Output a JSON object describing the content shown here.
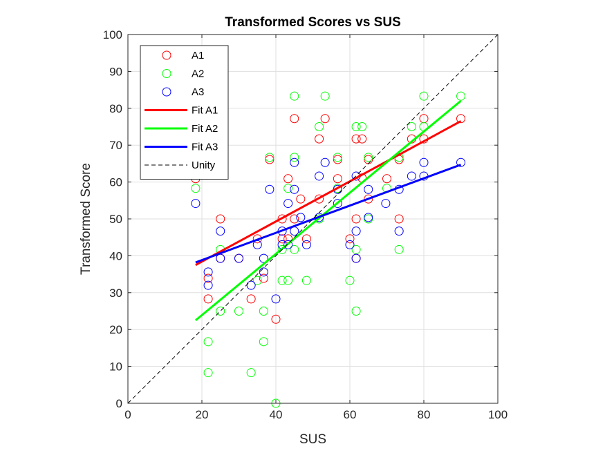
{
  "chart_data": {
    "type": "scatter",
    "title": "Transformed Scores vs SUS",
    "xlabel": "SUS",
    "ylabel": "Transformed Score",
    "xlim": [
      0,
      100
    ],
    "ylim": [
      0,
      100
    ],
    "xticks": [
      "0",
      "20",
      "40",
      "60",
      "80",
      "100"
    ],
    "yticks": [
      "0",
      "10",
      "20",
      "30",
      "40",
      "50",
      "60",
      "70",
      "80",
      "90",
      "100"
    ],
    "grid": true,
    "legend_position": "top-left",
    "series": [
      {
        "name": "A1",
        "kind": "scatter",
        "marker": "circle",
        "color": "#ff0000",
        "points": [
          [
            18.3,
            60.9
          ],
          [
            21.7,
            33.9
          ],
          [
            21.7,
            28.3
          ],
          [
            25,
            50
          ],
          [
            25,
            39.3
          ],
          [
            30,
            39.3
          ],
          [
            33.3,
            28.3
          ],
          [
            35,
            44.6
          ],
          [
            36.7,
            33.9
          ],
          [
            38.3,
            66.1
          ],
          [
            40,
            22.8
          ],
          [
            41.7,
            50
          ],
          [
            41.7,
            44.6
          ],
          [
            43.3,
            44.6
          ],
          [
            43.3,
            60.9
          ],
          [
            45,
            77.2
          ],
          [
            45,
            50
          ],
          [
            46.7,
            55.4
          ],
          [
            48.3,
            44.6
          ],
          [
            51.7,
            55.4
          ],
          [
            51.7,
            71.7
          ],
          [
            53.3,
            77.2
          ],
          [
            56.7,
            66.1
          ],
          [
            56.7,
            60.9
          ],
          [
            60,
            44.6
          ],
          [
            61.7,
            71.7
          ],
          [
            61.7,
            50
          ],
          [
            61.7,
            39.3
          ],
          [
            63.3,
            71.7
          ],
          [
            63.3,
            61.1
          ],
          [
            65,
            66.1
          ],
          [
            65,
            55.4
          ],
          [
            70,
            60.9
          ],
          [
            73.3,
            66.1
          ],
          [
            73.3,
            50
          ],
          [
            76.7,
            71.7
          ],
          [
            80,
            71.7
          ],
          [
            80,
            77.2
          ],
          [
            90,
            77.2
          ]
        ]
      },
      {
        "name": "A2",
        "kind": "scatter",
        "marker": "circle",
        "color": "#00ff00",
        "points": [
          [
            18.3,
            58.3
          ],
          [
            21.7,
            16.7
          ],
          [
            21.7,
            8.3
          ],
          [
            25,
            41.7
          ],
          [
            25,
            25
          ],
          [
            30,
            25
          ],
          [
            33.3,
            8.3
          ],
          [
            35,
            33.3
          ],
          [
            36.7,
            16.7
          ],
          [
            36.7,
            25
          ],
          [
            38.3,
            66.7
          ],
          [
            40,
            0
          ],
          [
            41.7,
            33.3
          ],
          [
            41.7,
            41.7
          ],
          [
            43.3,
            33.3
          ],
          [
            43.3,
            58.3
          ],
          [
            45,
            83.3
          ],
          [
            45,
            66.7
          ],
          [
            45,
            41.7
          ],
          [
            48.3,
            33.3
          ],
          [
            51.7,
            75
          ],
          [
            51.7,
            50
          ],
          [
            53.3,
            83.3
          ],
          [
            56.7,
            66.7
          ],
          [
            56.7,
            58.3
          ],
          [
            60,
            33.3
          ],
          [
            61.7,
            75
          ],
          [
            61.7,
            41.7
          ],
          [
            61.7,
            25
          ],
          [
            63.3,
            75
          ],
          [
            65,
            66.7
          ],
          [
            65,
            50
          ],
          [
            70,
            58.3
          ],
          [
            73.3,
            66.7
          ],
          [
            73.3,
            41.7
          ],
          [
            76.7,
            75
          ],
          [
            80,
            75
          ],
          [
            80,
            83.3
          ],
          [
            90,
            83.3
          ]
        ]
      },
      {
        "name": "A3",
        "kind": "scatter",
        "marker": "circle",
        "color": "#0000ff",
        "points": [
          [
            18.3,
            54.2
          ],
          [
            21.7,
            35.6
          ],
          [
            21.7,
            32
          ],
          [
            25,
            46.7
          ],
          [
            25,
            39.3
          ],
          [
            30,
            39.3
          ],
          [
            33.3,
            32
          ],
          [
            35,
            43
          ],
          [
            36.7,
            39.3
          ],
          [
            36.7,
            35.6
          ],
          [
            38.3,
            58
          ],
          [
            40,
            28.3
          ],
          [
            41.7,
            46.7
          ],
          [
            41.7,
            43
          ],
          [
            43.3,
            43
          ],
          [
            43.3,
            54.2
          ],
          [
            45,
            65.3
          ],
          [
            45,
            58
          ],
          [
            45,
            46.7
          ],
          [
            46.7,
            50.4
          ],
          [
            48.3,
            43
          ],
          [
            51.7,
            61.6
          ],
          [
            51.7,
            50.4
          ],
          [
            53.3,
            65.3
          ],
          [
            56.7,
            58
          ],
          [
            56.7,
            54.2
          ],
          [
            60,
            43
          ],
          [
            61.7,
            61.6
          ],
          [
            61.7,
            46.7
          ],
          [
            61.7,
            39.3
          ],
          [
            65,
            58
          ],
          [
            65,
            50.4
          ],
          [
            69.7,
            54.2
          ],
          [
            73.3,
            58
          ],
          [
            73.3,
            46.7
          ],
          [
            76.7,
            61.6
          ],
          [
            80,
            61.6
          ],
          [
            80,
            65.3
          ],
          [
            90,
            65.3
          ]
        ]
      },
      {
        "name": "Fit A1",
        "kind": "line",
        "color": "#ff0000",
        "points": [
          [
            18.3,
            37.5
          ],
          [
            90,
            76.5
          ]
        ]
      },
      {
        "name": "Fit A2",
        "kind": "line",
        "color": "#00ff00",
        "points": [
          [
            18.3,
            22.5
          ],
          [
            90,
            82
          ]
        ]
      },
      {
        "name": "Fit A3",
        "kind": "line",
        "color": "#0000ff",
        "points": [
          [
            18.3,
            38.2
          ],
          [
            90,
            64.7
          ]
        ]
      },
      {
        "name": "Unity",
        "kind": "line",
        "style": "dashed",
        "color": "#000000",
        "points": [
          [
            0,
            0
          ],
          [
            100,
            100
          ]
        ]
      }
    ]
  }
}
